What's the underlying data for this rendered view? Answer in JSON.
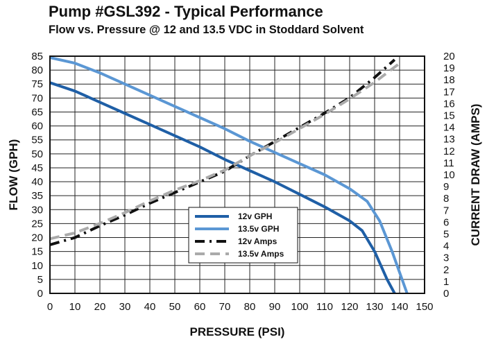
{
  "chart_data": {
    "type": "line",
    "title": "Pump #GSL392 - Typical Performance",
    "subtitle": "Flow vs. Pressure @ 12 and 13.5 VDC in Stoddard Solvent",
    "xlabel": "PRESSURE (PSI)",
    "ylabel": "FLOW (GPH)",
    "y2label": "CURRENT DRAW (AMPS)",
    "xlim": [
      0,
      150
    ],
    "ylim": [
      0,
      85
    ],
    "y2lim": [
      0,
      20
    ],
    "xticks": [
      "0",
      "10",
      "20",
      "30",
      "40",
      "50",
      "60",
      "70",
      "80",
      "90",
      "100",
      "110",
      "120",
      "130",
      "140",
      "150"
    ],
    "yticks": [
      "0",
      "5",
      "10",
      "15",
      "20",
      "25",
      "30",
      "35",
      "40",
      "45",
      "50",
      "55",
      "60",
      "65",
      "70",
      "75",
      "80",
      "85"
    ],
    "y2ticks": [
      "0",
      "1",
      "2",
      "3",
      "4",
      "5",
      "6",
      "7",
      "8",
      "9",
      "10",
      "11",
      "12",
      "13",
      "14",
      "15",
      "16",
      "17",
      "18",
      "19",
      "20"
    ],
    "grid": true,
    "legend_position": "bottom-center",
    "series": [
      {
        "name": "12v GPH",
        "axis": "left",
        "color": "#1f5fa6",
        "style": "solid",
        "points": [
          [
            0,
            75.5
          ],
          [
            10,
            72.5
          ],
          [
            20,
            68.5
          ],
          [
            30,
            64.5
          ],
          [
            40,
            60.5
          ],
          [
            50,
            56.5
          ],
          [
            60,
            52.5
          ],
          [
            70,
            48.0
          ],
          [
            80,
            44.0
          ],
          [
            90,
            40.0
          ],
          [
            100,
            35.5
          ],
          [
            110,
            31.0
          ],
          [
            120,
            26.0
          ],
          [
            125,
            22.5
          ],
          [
            130,
            15.0
          ],
          [
            135,
            5.0
          ],
          [
            138,
            0
          ]
        ]
      },
      {
        "name": "13.5v GPH",
        "axis": "left",
        "color": "#5b97d4",
        "style": "solid",
        "points": [
          [
            0,
            84.5
          ],
          [
            10,
            82.5
          ],
          [
            20,
            79.0
          ],
          [
            30,
            75.0
          ],
          [
            40,
            71.0
          ],
          [
            50,
            67.0
          ],
          [
            60,
            63.0
          ],
          [
            70,
            59.0
          ],
          [
            80,
            54.5
          ],
          [
            90,
            50.5
          ],
          [
            100,
            46.5
          ],
          [
            110,
            42.5
          ],
          [
            120,
            37.5
          ],
          [
            127,
            33.0
          ],
          [
            132,
            26.0
          ],
          [
            137,
            15.0
          ],
          [
            143,
            0
          ]
        ]
      },
      {
        "name": "12v Amps",
        "axis": "right",
        "color": "#111111",
        "style": "dashdot",
        "points": [
          [
            0,
            4.1
          ],
          [
            10,
            4.7
          ],
          [
            20,
            5.7
          ],
          [
            30,
            6.6
          ],
          [
            40,
            7.6
          ],
          [
            50,
            8.5
          ],
          [
            60,
            9.4
          ],
          [
            70,
            10.3
          ],
          [
            80,
            11.6
          ],
          [
            90,
            12.8
          ],
          [
            100,
            14.0
          ],
          [
            110,
            15.2
          ],
          [
            120,
            16.5
          ],
          [
            130,
            18.2
          ],
          [
            138,
            19.7
          ]
        ]
      },
      {
        "name": "13.5v Amps",
        "axis": "right",
        "color": "#aaaaaa",
        "style": "dashed",
        "points": [
          [
            0,
            4.6
          ],
          [
            10,
            5.1
          ],
          [
            20,
            5.9
          ],
          [
            30,
            6.8
          ],
          [
            40,
            7.8
          ],
          [
            50,
            8.7
          ],
          [
            60,
            9.5
          ],
          [
            70,
            10.4
          ],
          [
            80,
            11.6
          ],
          [
            90,
            12.7
          ],
          [
            100,
            13.9
          ],
          [
            110,
            15.1
          ],
          [
            120,
            16.4
          ],
          [
            130,
            17.8
          ],
          [
            140,
            19.4
          ]
        ]
      }
    ]
  }
}
